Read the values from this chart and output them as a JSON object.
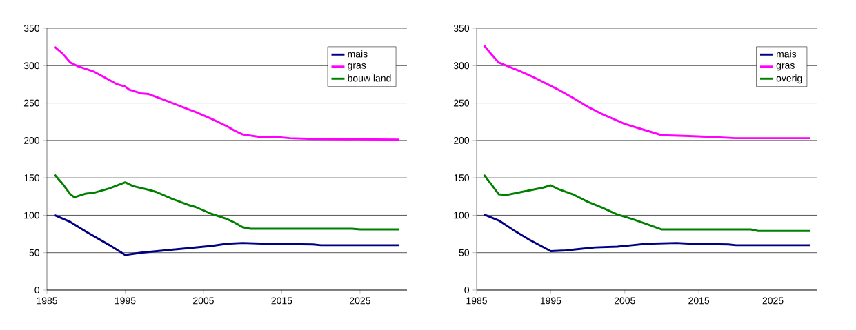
{
  "chart_data": [
    {
      "type": "line",
      "xlim": [
        1985,
        2031
      ],
      "ylim": [
        0,
        350
      ],
      "xticks": [
        1985,
        1995,
        2005,
        2015,
        2025
      ],
      "yticks": [
        0,
        50,
        100,
        150,
        200,
        250,
        300,
        350
      ],
      "grid": "y",
      "legend": "top right",
      "series": [
        {
          "name": "mais",
          "color": "#000080",
          "x": [
            1986,
            1988,
            1990,
            1993,
            1995,
            1997,
            2000,
            2003,
            2006,
            2008,
            2010,
            2013,
            2019,
            2020,
            2030
          ],
          "values": [
            100,
            91,
            78,
            60,
            47,
            50,
            53,
            56,
            59,
            62,
            63,
            62,
            61,
            60,
            60
          ]
        },
        {
          "name": "gras",
          "color": "#ff00ff",
          "x": [
            1986,
            1987,
            1988,
            1989,
            1991,
            1994,
            1995,
            1995.5,
            1997,
            1998,
            2000,
            2003,
            2004,
            2006,
            2008,
            2009,
            2010,
            2012,
            2014,
            2016,
            2019,
            2030
          ],
          "values": [
            325,
            316,
            304,
            299,
            292,
            275,
            272,
            268,
            263,
            262,
            254,
            242,
            238,
            229,
            219,
            213,
            208,
            205,
            205,
            203,
            202,
            201
          ]
        },
        {
          "name": "bouw land",
          "color": "#008000",
          "x": [
            1986,
            1987,
            1988,
            1988.5,
            1990,
            1991,
            1993,
            1995,
            1996,
            1998,
            1999,
            2001,
            2003,
            2004,
            2006,
            2008,
            2009,
            2010,
            2011,
            2024,
            2025,
            2030
          ],
          "values": [
            154,
            142,
            128,
            124,
            129,
            130,
            136,
            144,
            139,
            134,
            131,
            122,
            114,
            111,
            102,
            95,
            90,
            84,
            82,
            82,
            81,
            81
          ]
        }
      ]
    },
    {
      "type": "line",
      "xlim": [
        1985,
        2031
      ],
      "ylim": [
        0,
        350
      ],
      "xticks": [
        1985,
        1995,
        2005,
        2015,
        2025
      ],
      "yticks": [
        0,
        50,
        100,
        150,
        200,
        250,
        300,
        350
      ],
      "grid": "y",
      "legend": "top right",
      "series": [
        {
          "name": "mais",
          "color": "#000080",
          "x": [
            1986,
            1988,
            1990,
            1992,
            1995,
            1997,
            1999,
            2001,
            2004,
            2006,
            2008,
            2012,
            2014,
            2019,
            2020,
            2030
          ],
          "values": [
            101,
            93,
            80,
            68,
            52,
            53,
            55,
            57,
            58,
            60,
            62,
            63,
            62,
            61,
            60,
            60
          ]
        },
        {
          "name": "gras",
          "color": "#ff00ff",
          "x": [
            1986,
            1987,
            1988,
            1989,
            1991,
            1993,
            1995,
            1996,
            1998,
            2000,
            2002,
            2005,
            2007,
            2009,
            2010,
            2013,
            2016,
            2020,
            2030
          ],
          "values": [
            327,
            315,
            304,
            300,
            292,
            283,
            273,
            268,
            257,
            245,
            235,
            222,
            216,
            210,
            207,
            206,
            205,
            203,
            203
          ]
        },
        {
          "name": "overig",
          "color": "#008000",
          "x": [
            1986,
            1987,
            1988,
            1989,
            1991,
            1994,
            1995,
            1996,
            1998,
            2000,
            2002,
            2004,
            2006,
            2008,
            2010,
            2022,
            2023,
            2030
          ],
          "values": [
            154,
            141,
            128,
            127,
            131,
            137,
            140,
            135,
            128,
            118,
            110,
            101,
            95,
            88,
            81,
            81,
            79,
            79
          ]
        }
      ]
    }
  ]
}
